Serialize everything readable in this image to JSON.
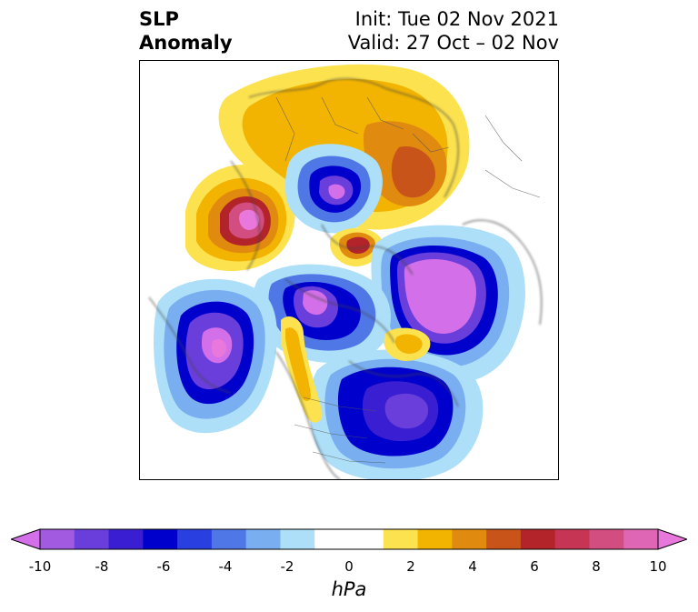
{
  "title": {
    "variable": "SLP",
    "kind": "Anomaly",
    "init": "Init: Tue 02 Nov 2021",
    "valid": "Valid: 27 Oct – 02 Nov"
  },
  "colorbar": {
    "units": "hPa",
    "tick_labels": [
      "-10",
      "-8",
      "-6",
      "-4",
      "-2",
      "0",
      "2",
      "4",
      "6",
      "8",
      "10"
    ],
    "levels": [
      -10,
      -9,
      -8,
      -7,
      -6,
      -5,
      -4,
      -3,
      -2,
      -1,
      1,
      2,
      3,
      4,
      5,
      6,
      7,
      8,
      9,
      10
    ],
    "colors": [
      "#d36fe8",
      "#a15ae0",
      "#6a3edb",
      "#3a1fd2",
      "#0000cc",
      "#2a3fe0",
      "#4f78e6",
      "#79aef0",
      "#addff9",
      "#ffffff",
      "#ffffff",
      "#fce24e",
      "#f2b400",
      "#e08a0f",
      "#c9541a",
      "#b3232a",
      "#c63554",
      "#d24d80",
      "#de66b4",
      "#e878dc"
    ],
    "extend": "both"
  },
  "map": {
    "projection": "polar stereographic (north pole)",
    "field": "sea level pressure anomaly",
    "region_labels": []
  }
}
